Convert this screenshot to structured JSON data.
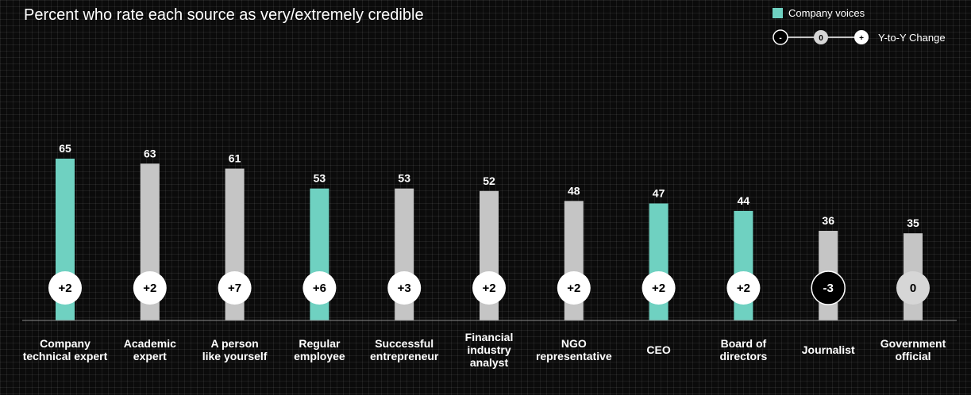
{
  "chart_data": {
    "type": "bar",
    "title": "Percent who rate each source as very/extremely credible",
    "categories": [
      [
        "Company",
        "technical expert"
      ],
      [
        "Academic",
        "expert"
      ],
      [
        "A person",
        "like yourself"
      ],
      [
        "Regular",
        "employee"
      ],
      [
        "Successful",
        "entrepreneur"
      ],
      [
        "Financial",
        "industry",
        "analyst"
      ],
      [
        "NGO",
        "representative"
      ],
      [
        "CEO"
      ],
      [
        "Board of",
        "directors"
      ],
      [
        "Journalist"
      ],
      [
        "Government",
        "official"
      ]
    ],
    "values": [
      65,
      63,
      61,
      53,
      53,
      52,
      48,
      47,
      44,
      36,
      35
    ],
    "changes": [
      "+2",
      "+2",
      "+7",
      "+6",
      "+3",
      "+2",
      "+2",
      "+2",
      "+2",
      "-3",
      "0"
    ],
    "change_type": [
      "pos",
      "pos",
      "pos",
      "pos",
      "pos",
      "pos",
      "pos",
      "pos",
      "pos",
      "neg",
      "zero"
    ],
    "company_voice": [
      true,
      false,
      false,
      true,
      false,
      false,
      false,
      true,
      true,
      false,
      false
    ],
    "ylim": [
      0,
      100
    ],
    "grid": false,
    "legend": {
      "placement": "top-right",
      "company_label": "Company voices",
      "change_label": "Y-to-Y Change",
      "neg_symbol": "-",
      "zero_symbol": "0",
      "pos_symbol": "+"
    },
    "colors": {
      "company": "#6fd1c1",
      "other": "#c5c5c5",
      "neg_circle": "#000000",
      "zero_circle": "#d6d6d6",
      "pos_circle": "#ffffff"
    }
  }
}
